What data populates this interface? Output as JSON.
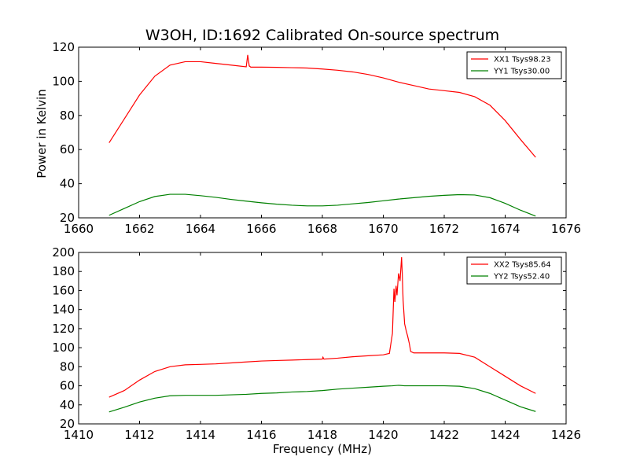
{
  "figure": {
    "title": "W3OH, ID:1692 Calibrated On-source spectrum",
    "ylabel": "Power in Kelvin",
    "xlabel": "Frequency (MHz)"
  },
  "chart_data": [
    {
      "type": "line",
      "xlim": [
        1660,
        1676
      ],
      "ylim": [
        20,
        120
      ],
      "xticks": [
        1660,
        1662,
        1664,
        1666,
        1668,
        1670,
        1672,
        1674,
        1676
      ],
      "yticks": [
        20,
        40,
        60,
        80,
        100,
        120
      ],
      "grid": false,
      "legend_position": "top-right",
      "series": [
        {
          "name": "XX1 Tsys98.23",
          "color": "#ff0000",
          "x": [
            1661.0,
            1661.5,
            1662.0,
            1662.5,
            1663.0,
            1663.5,
            1664.0,
            1664.5,
            1665.0,
            1665.5,
            1665.55,
            1665.6,
            1665.65,
            1665.7,
            1666.0,
            1666.5,
            1667.0,
            1667.5,
            1668.0,
            1668.5,
            1669.0,
            1669.5,
            1670.0,
            1670.5,
            1671.0,
            1671.5,
            1672.0,
            1672.5,
            1673.0,
            1673.5,
            1674.0,
            1674.5,
            1675.0
          ],
          "y": [
            64,
            78,
            92,
            103,
            109.5,
            111.5,
            111.5,
            110.5,
            109.5,
            108.5,
            115.5,
            109,
            108.3,
            108.3,
            108.3,
            108.2,
            108,
            107.8,
            107.2,
            106.5,
            105.5,
            104,
            102,
            99.5,
            97.5,
            95.5,
            94.5,
            93.5,
            91,
            86,
            77,
            66,
            55.5
          ]
        },
        {
          "name": "YY1 Tsys30.00",
          "color": "#008000",
          "x": [
            1661.0,
            1661.5,
            1662.0,
            1662.5,
            1663.0,
            1663.5,
            1664.0,
            1664.5,
            1665.0,
            1665.5,
            1666.0,
            1666.5,
            1667.0,
            1667.5,
            1668.0,
            1668.5,
            1669.0,
            1669.5,
            1670.0,
            1670.5,
            1671.0,
            1671.5,
            1672.0,
            1672.5,
            1673.0,
            1673.5,
            1674.0,
            1674.5,
            1675.0
          ],
          "y": [
            21.5,
            25.5,
            29.5,
            32.5,
            33.8,
            33.8,
            33.0,
            32.0,
            30.8,
            29.8,
            28.8,
            28.0,
            27.4,
            27.0,
            27.0,
            27.4,
            28.2,
            29.0,
            30.0,
            31.0,
            31.8,
            32.6,
            33.2,
            33.6,
            33.4,
            31.8,
            28.5,
            24.5,
            21.0
          ]
        }
      ]
    },
    {
      "type": "line",
      "xlim": [
        1410,
        1426
      ],
      "ylim": [
        20,
        200
      ],
      "xticks": [
        1410,
        1412,
        1414,
        1416,
        1418,
        1420,
        1422,
        1424,
        1426
      ],
      "yticks": [
        20,
        40,
        60,
        80,
        100,
        120,
        140,
        160,
        180,
        200
      ],
      "grid": false,
      "legend_position": "top-right",
      "series": [
        {
          "name": "XX2 Tsys85.64",
          "color": "#ff0000",
          "x": [
            1411.0,
            1411.5,
            1412.0,
            1412.5,
            1413.0,
            1413.5,
            1414.0,
            1414.5,
            1415.0,
            1415.5,
            1416.0,
            1416.5,
            1417.0,
            1417.5,
            1418.0,
            1418.02,
            1418.05,
            1418.5,
            1419.0,
            1419.5,
            1420.0,
            1420.2,
            1420.3,
            1420.35,
            1420.38,
            1420.42,
            1420.45,
            1420.5,
            1420.55,
            1420.6,
            1420.62,
            1420.65,
            1420.7,
            1420.75,
            1420.8,
            1420.85,
            1420.9,
            1421.0,
            1421.5,
            1422.0,
            1422.5,
            1423.0,
            1423.5,
            1424.0,
            1424.5,
            1425.0
          ],
          "y": [
            48,
            55,
            66,
            75,
            80,
            82,
            82.5,
            83,
            84,
            85,
            86,
            86.5,
            87,
            87.5,
            88,
            90,
            88,
            89,
            90.5,
            91.5,
            92.5,
            94,
            115,
            162,
            148,
            165,
            155,
            178,
            170,
            195,
            180,
            150,
            125,
            118,
            112,
            105,
            96,
            94.5,
            94.5,
            94.5,
            94,
            90,
            80,
            70,
            60,
            52
          ]
        },
        {
          "name": "YY2 Tsys52.40",
          "color": "#008000",
          "x": [
            1411.0,
            1411.5,
            1412.0,
            1412.5,
            1413.0,
            1413.5,
            1414.0,
            1414.5,
            1415.0,
            1415.5,
            1416.0,
            1416.5,
            1417.0,
            1417.5,
            1418.0,
            1418.5,
            1419.0,
            1419.5,
            1420.0,
            1420.3,
            1420.5,
            1420.7,
            1421.0,
            1421.5,
            1422.0,
            1422.5,
            1423.0,
            1423.5,
            1424.0,
            1424.5,
            1425.0
          ],
          "y": [
            32.5,
            37.5,
            43,
            47,
            49.5,
            50,
            50,
            50,
            50.5,
            51,
            52,
            52.5,
            53.5,
            54,
            55,
            56.5,
            57.5,
            58.5,
            59.5,
            60,
            60.5,
            60,
            60,
            60,
            60,
            59.5,
            57,
            52,
            45,
            38,
            33
          ]
        }
      ]
    }
  ]
}
